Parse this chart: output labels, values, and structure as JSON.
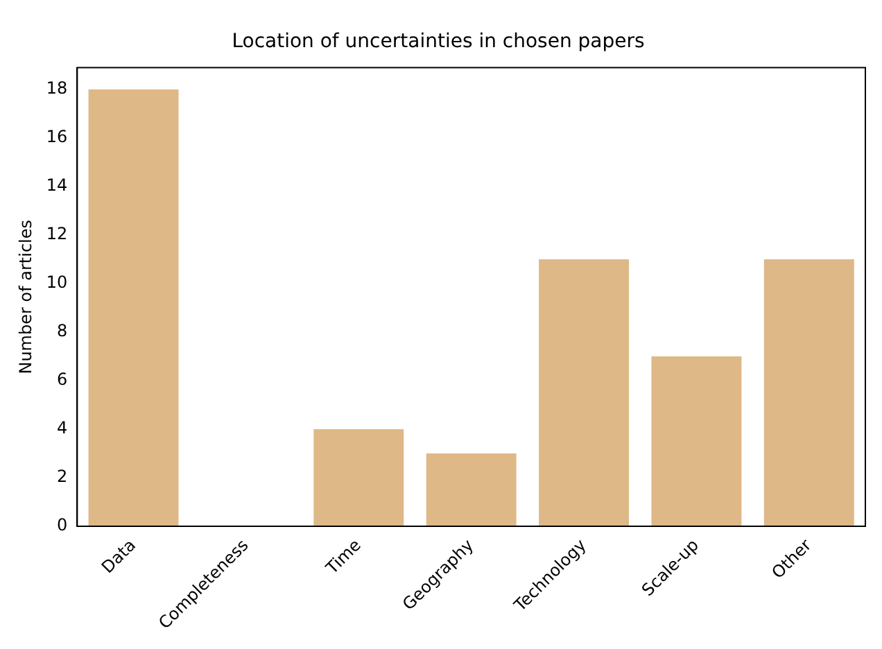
{
  "chart_data": {
    "type": "bar",
    "title": "Location of uncertainties in chosen papers",
    "ylabel": "Number of articles",
    "categories": [
      "Data",
      "Completeness",
      "Time",
      "Geography",
      "Technology",
      "Scale-up",
      "Other"
    ],
    "values": [
      18,
      0,
      4,
      3,
      11,
      7,
      11
    ],
    "color": "#deb887",
    "ylim": [
      0,
      18.9
    ],
    "yticks": [
      0,
      2,
      4,
      6,
      8,
      10,
      12,
      14,
      16,
      18
    ],
    "grid": false,
    "legend": false
  }
}
